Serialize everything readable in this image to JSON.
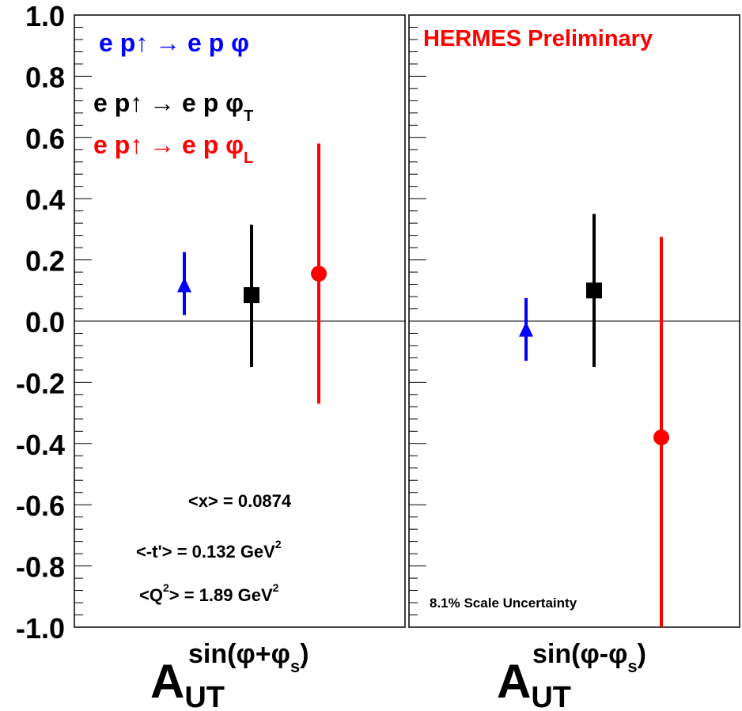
{
  "chart_data": {
    "type": "scatter",
    "ylim": [
      -1.0,
      1.0
    ],
    "y_ticks": [
      "1.0",
      "0.8",
      "0.6",
      "0.4",
      "0.2",
      "0.0",
      "-0.2",
      "-0.4",
      "-0.6",
      "-0.8",
      "-1.0"
    ],
    "grid": false,
    "legend_placement": "top-left",
    "colors": {
      "blue": "#0000ff",
      "black": "#000000",
      "red": "#ff0000"
    },
    "legend": [
      {
        "text": "e p↑ → e p φ",
        "subscript": "",
        "color": "#0000ff",
        "marker": "triangle"
      },
      {
        "text": "e p↑ → e p φ",
        "subscript": "T",
        "color": "#000000",
        "marker": "square"
      },
      {
        "text": "e p↑ → e p φ",
        "subscript": "L",
        "color": "#ff0000",
        "marker": "circle"
      }
    ],
    "panels": [
      {
        "label_main": "A",
        "label_sub": "UT",
        "label_sup": "sin(φ+φ",
        "label_sup_sub": "s",
        "label_sup_end": ")",
        "points": [
          {
            "series": "e p↑ → e p φ",
            "y": 0.115,
            "err_low": 0.02,
            "err_high": 0.225,
            "color": "#0000ff",
            "marker": "triangle"
          },
          {
            "series": "e p↑ → e p φT",
            "y": 0.085,
            "err_low": -0.15,
            "err_high": 0.315,
            "color": "#000000",
            "marker": "square"
          },
          {
            "series": "e p↑ → e p φL",
            "y": 0.155,
            "err_low": -0.27,
            "err_high": 0.58,
            "color": "#ff0000",
            "marker": "circle"
          }
        ]
      },
      {
        "label_main": "A",
        "label_sub": "UT",
        "label_sup": "sin(φ-φ",
        "label_sup_sub": "s",
        "label_sup_end": ")",
        "points": [
          {
            "series": "e p↑ → e p φ",
            "y": -0.03,
            "err_low": -0.13,
            "err_high": 0.075,
            "color": "#0000ff",
            "marker": "triangle"
          },
          {
            "series": "e p↑ → e p φT",
            "y": 0.1,
            "err_low": -0.15,
            "err_high": 0.35,
            "color": "#000000",
            "marker": "square"
          },
          {
            "series": "e p↑ → e p φL",
            "y": -0.38,
            "err_low": -1.0,
            "err_high": 0.275,
            "color": "#ff0000",
            "marker": "circle"
          }
        ]
      }
    ],
    "annotations": {
      "x_mean": "<x> = 0.0874",
      "t_mean": "<-t'> = 0.132 GeV",
      "t_mean_sup": "2",
      "q2_prefix": "<Q",
      "q2_sup": "2",
      "q2_rest": "> = 1.89 GeV",
      "q2_rest_sup": "2",
      "preliminary": "HERMES Preliminary",
      "scale_uncertainty": "8.1% Scale Uncertainty"
    }
  }
}
